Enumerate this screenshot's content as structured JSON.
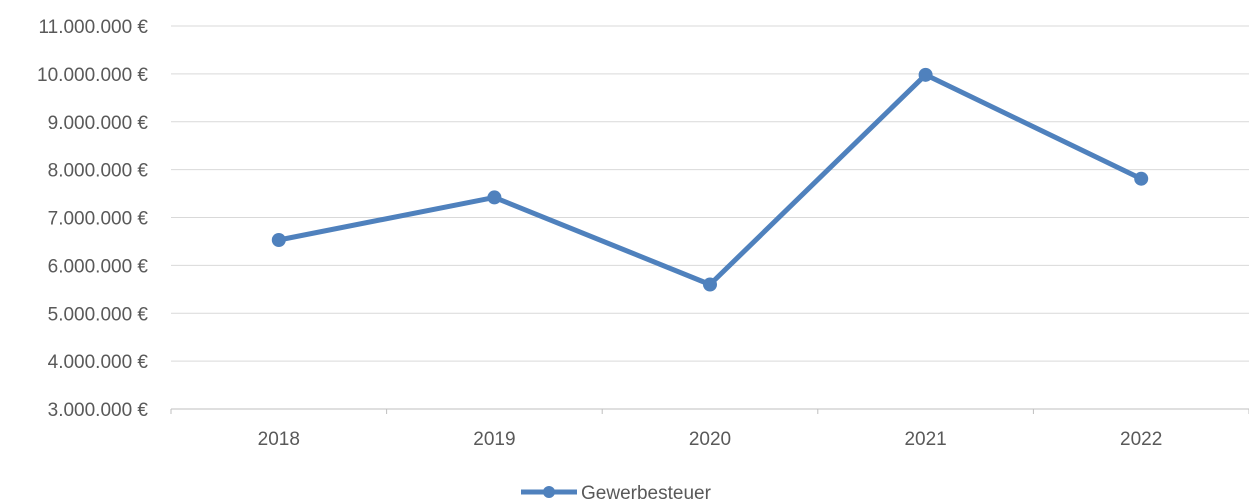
{
  "chart_data": {
    "type": "line",
    "categories": [
      "2018",
      "2019",
      "2020",
      "2021",
      "2022"
    ],
    "series": [
      {
        "name": "Gewerbesteuer",
        "values": [
          6530000,
          7420000,
          5600000,
          9980000,
          7810000
        ],
        "color": "#4F81BD"
      }
    ],
    "ylim": [
      3000000,
      11000000
    ],
    "ystep": 1000000,
    "ytick_labels": [
      "3.000.000 €",
      "4.000.000 €",
      "5.000.000 €",
      "6.000.000 €",
      "7.000.000 €",
      "8.000.000 €",
      "9.000.000 €",
      "10.000.000 €",
      "11.000.000 €"
    ],
    "grid": true,
    "legend": "bottom",
    "title": "",
    "xlabel": "",
    "ylabel": ""
  }
}
